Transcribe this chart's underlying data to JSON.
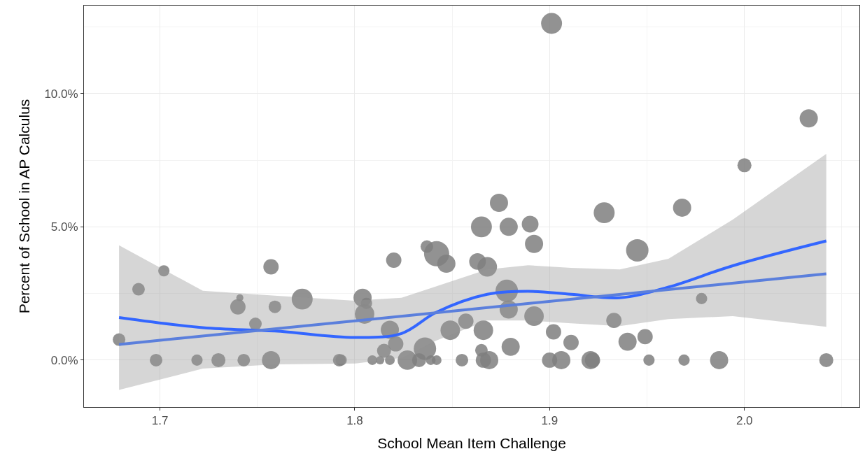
{
  "chart_data": {
    "type": "bubble",
    "xlabel": "School Mean Item Challenge",
    "ylabel": "Percent of School in AP Calculus",
    "xlim": [
      1.661,
      2.059
    ],
    "xticks": [
      1.7,
      1.8,
      1.9,
      {
        "value": 2.0,
        "label": "2.0"
      }
    ],
    "ylim": [
      -1.76,
      13.3
    ],
    "yticks": [
      {
        "value": 0,
        "label": "0.0%"
      },
      {
        "value": 5,
        "label": "5.0%"
      },
      {
        "value": 10,
        "label": "10.0%"
      }
    ],
    "grid": true,
    "series": [
      {
        "color": "#7f7f7f",
        "x": [
          1.679,
          1.689,
          1.702,
          1.698,
          1.719,
          1.73,
          1.741,
          1.74,
          1.749,
          1.757,
          1.759,
          1.743,
          1.757,
          1.773,
          1.792,
          1.793,
          1.804,
          1.806,
          1.805,
          1.82,
          1.818,
          1.821,
          1.815,
          1.809,
          1.813,
          1.818,
          1.827,
          1.833,
          1.839,
          1.842,
          1.855,
          1.866,
          1.869,
          1.836,
          1.837,
          1.842,
          1.847,
          1.849,
          1.857,
          1.863,
          1.868,
          1.865,
          1.874,
          1.879,
          1.89,
          1.892,
          1.878,
          1.879,
          1.892,
          1.866,
          1.865,
          1.88,
          1.902,
          1.911,
          1.933,
          1.94,
          1.949,
          1.928,
          1.945,
          1.968,
          2.0,
          2.033,
          1.978,
          1.9,
          1.906,
          1.921,
          1.922,
          1.951,
          1.969,
          1.987,
          2.042,
          1.901
        ],
        "values": [
          0.77,
          2.66,
          3.35,
          0,
          0,
          0,
          2.34,
          2.0,
          1.36,
          3.5,
          2.0,
          0,
          0,
          2.29,
          0,
          0,
          2.34,
          2.13,
          1.73,
          3.75,
          1.14,
          0.61,
          0.35,
          0,
          0,
          0,
          0,
          0,
          0,
          0,
          0,
          0,
          0,
          0.43,
          4.26,
          3.99,
          3.62,
          1.12,
          1.46,
          3.7,
          3.5,
          5.0,
          5.9,
          5.0,
          5.1,
          4.36,
          2.6,
          1.9,
          1.65,
          1.12,
          0.37,
          0.5,
          1.06,
          0.66,
          1.49,
          0.69,
          0.88,
          5.53,
          4.12,
          5.72,
          7.31,
          9.07,
          2.31,
          0,
          0,
          0,
          0,
          0,
          0,
          0,
          0,
          12.63
        ],
        "sizes": [
          0.25,
          0.25,
          0.2,
          0.25,
          0.2,
          0.31,
          0.08,
          0.37,
          0.25,
          0.37,
          0.25,
          0.25,
          0.52,
          0.69,
          0.25,
          0.2,
          0.52,
          0.2,
          0.6,
          0.37,
          0.52,
          0.37,
          0.31,
          0.15,
          0.11,
          0.15,
          0.6,
          0.31,
          0.15,
          0.15,
          0.25,
          0.37,
          0.52,
          0.79,
          0.25,
          1,
          0.52,
          0.6,
          0.37,
          0.44,
          0.6,
          0.69,
          0.52,
          0.52,
          0.44,
          0.52,
          0.79,
          0.52,
          0.6,
          0.6,
          0.25,
          0.52,
          0.37,
          0.37,
          0.37,
          0.52,
          0.37,
          0.69,
          0.79,
          0.52,
          0.31,
          0.52,
          0.2,
          0.37,
          0.52,
          0.52,
          0.37,
          0.2,
          0.2,
          0.52,
          0.31,
          0.69
        ]
      },
      {
        "type": "line",
        "color": "#3366ff",
        "x": [
          1.679,
          1.722,
          1.759,
          1.8,
          1.824,
          1.842,
          1.868,
          1.889,
          1.911,
          1.936,
          1.961,
          1.994,
          2.042
        ],
        "values": [
          1.6,
          1.22,
          1.09,
          0.85,
          1.0,
          1.8,
          2.47,
          2.58,
          2.47,
          2.34,
          2.74,
          3.54,
          4.47
        ],
        "lower": [
          -1.12,
          -0.32,
          -0.16,
          -0.13,
          0.08,
          0.74,
          1.49,
          1.49,
          1.38,
          1.28,
          1.54,
          1.65,
          1.25
        ],
        "upper": [
          4.31,
          2.6,
          2.42,
          2.23,
          2.34,
          2.77,
          3.4,
          3.56,
          3.46,
          3.4,
          3.8,
          5.27,
          7.74
        ]
      },
      {
        "type": "line",
        "color": "#5b7fdc",
        "x": [
          1.679,
          2.042
        ],
        "values": [
          0.59,
          3.24
        ]
      }
    ]
  }
}
